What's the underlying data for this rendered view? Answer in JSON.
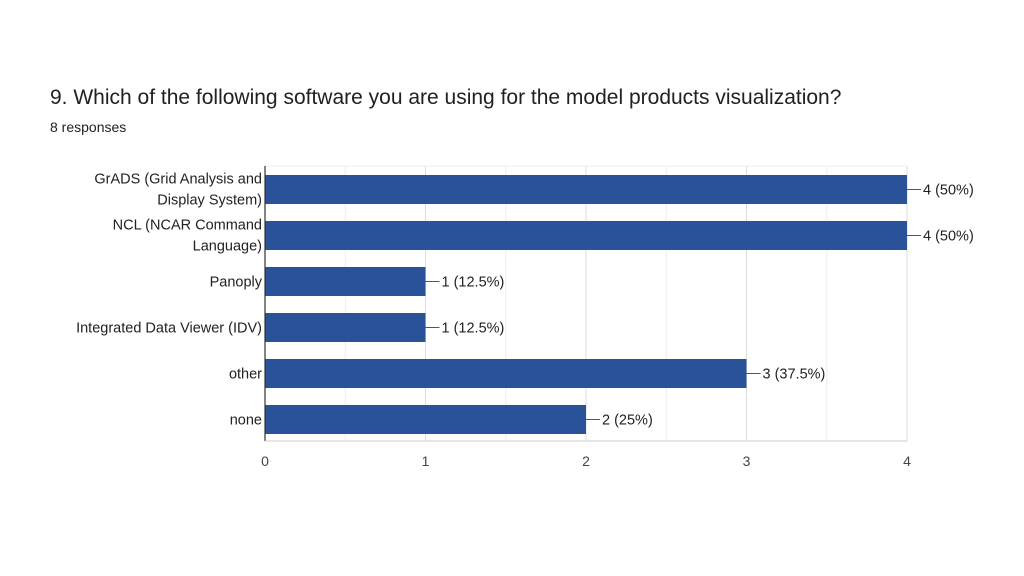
{
  "header": {
    "question": "9. Which of the following software you are using for the model products visualization?",
    "responses": "8 responses"
  },
  "colors": {
    "bar": "#2a5298",
    "grid": "#e6e6e6",
    "axis": "#333333",
    "leader": "#555555"
  },
  "chart_data": {
    "type": "bar",
    "orientation": "horizontal",
    "categories": [
      [
        "GrADS (Grid Analysis and",
        "Display System)"
      ],
      [
        "NCL (NCAR Command",
        "Language)"
      ],
      [
        "Panoply"
      ],
      [
        "Integrated Data Viewer (IDV)"
      ],
      [
        "other"
      ],
      [
        "none"
      ]
    ],
    "values": [
      4,
      4,
      1,
      1,
      3,
      2
    ],
    "data_labels": [
      "4 (50%)",
      "4 (50%)",
      "1 (12.5%)",
      "1 (12.5%)",
      "3 (37.5%)",
      "2 (25%)"
    ],
    "xlim": [
      0,
      4
    ],
    "xticks": [
      "0",
      "1",
      "2",
      "3",
      "4"
    ],
    "grid": true
  }
}
